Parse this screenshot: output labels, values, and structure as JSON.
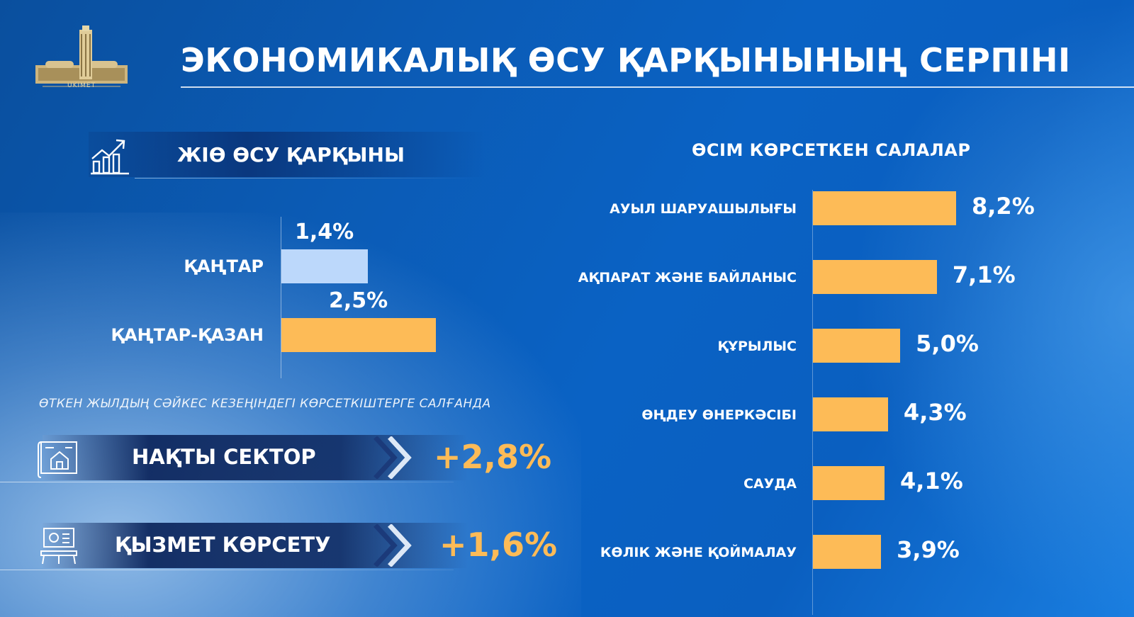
{
  "title": "ЭКОНОМИКАЛЫҚ ӨСУ ҚАРҚЫНЫНЫҢ СЕРПІНІ",
  "logo_text": "UKIMET",
  "colors": {
    "accent": "#fdbb57",
    "light_bar": "#bcd8fb",
    "background": "#0a5bb8"
  },
  "gdp_section": {
    "label": "ЖІӨ ӨСУ ҚАРҚЫНЫ",
    "icon": "growth-chart-icon"
  },
  "note": "ӨТКЕН ЖЫЛДЫҢ СӘЙКЕС КЕЗЕҢІНДЕГІ КӨРСЕТКІШТЕРГЕ САЛҒАНДА",
  "sectors": [
    {
      "label": "НАҚТЫ СЕКТОР",
      "value": "+2,8%",
      "icon": "blueprint-house-icon"
    },
    {
      "label": "ҚЫЗМЕТ КӨРСЕТУ",
      "value": "+1,6%",
      "icon": "presentation-board-icon"
    }
  ],
  "chart_data": [
    {
      "type": "bar",
      "orientation": "horizontal",
      "categories": [
        "ҚАҢТАР",
        "ҚАҢТАР-ҚАЗАН"
      ],
      "values": [
        1.4,
        2.5
      ],
      "value_labels": [
        "1,4%",
        "2,5%"
      ],
      "bar_colors": [
        "#bcd8fb",
        "#fdbb57"
      ],
      "xlim": [
        0,
        2.5
      ]
    },
    {
      "type": "bar",
      "orientation": "horizontal",
      "title": "ӨСІМ КӨРСЕТКЕН САЛАЛАР",
      "categories": [
        "АУЫЛ ШАРУАШЫЛЫҒЫ",
        "АҚПАРАТ ЖӘНЕ БАЙЛАНЫС",
        "ҚҰРЫЛЫС",
        "ӨҢДЕУ ӨНЕРКӘСІБІ",
        "САУДА",
        "КӨЛІК ЖӘНЕ ҚОЙМАЛАУ"
      ],
      "values": [
        8.2,
        7.1,
        5.0,
        4.3,
        4.1,
        3.9
      ],
      "value_labels": [
        "8,2%",
        "7,1%",
        "5,0%",
        "4,3%",
        "4,1%",
        "3,9%"
      ],
      "bar_color": "#fdbb57",
      "xlim": [
        0,
        8.2
      ]
    }
  ]
}
